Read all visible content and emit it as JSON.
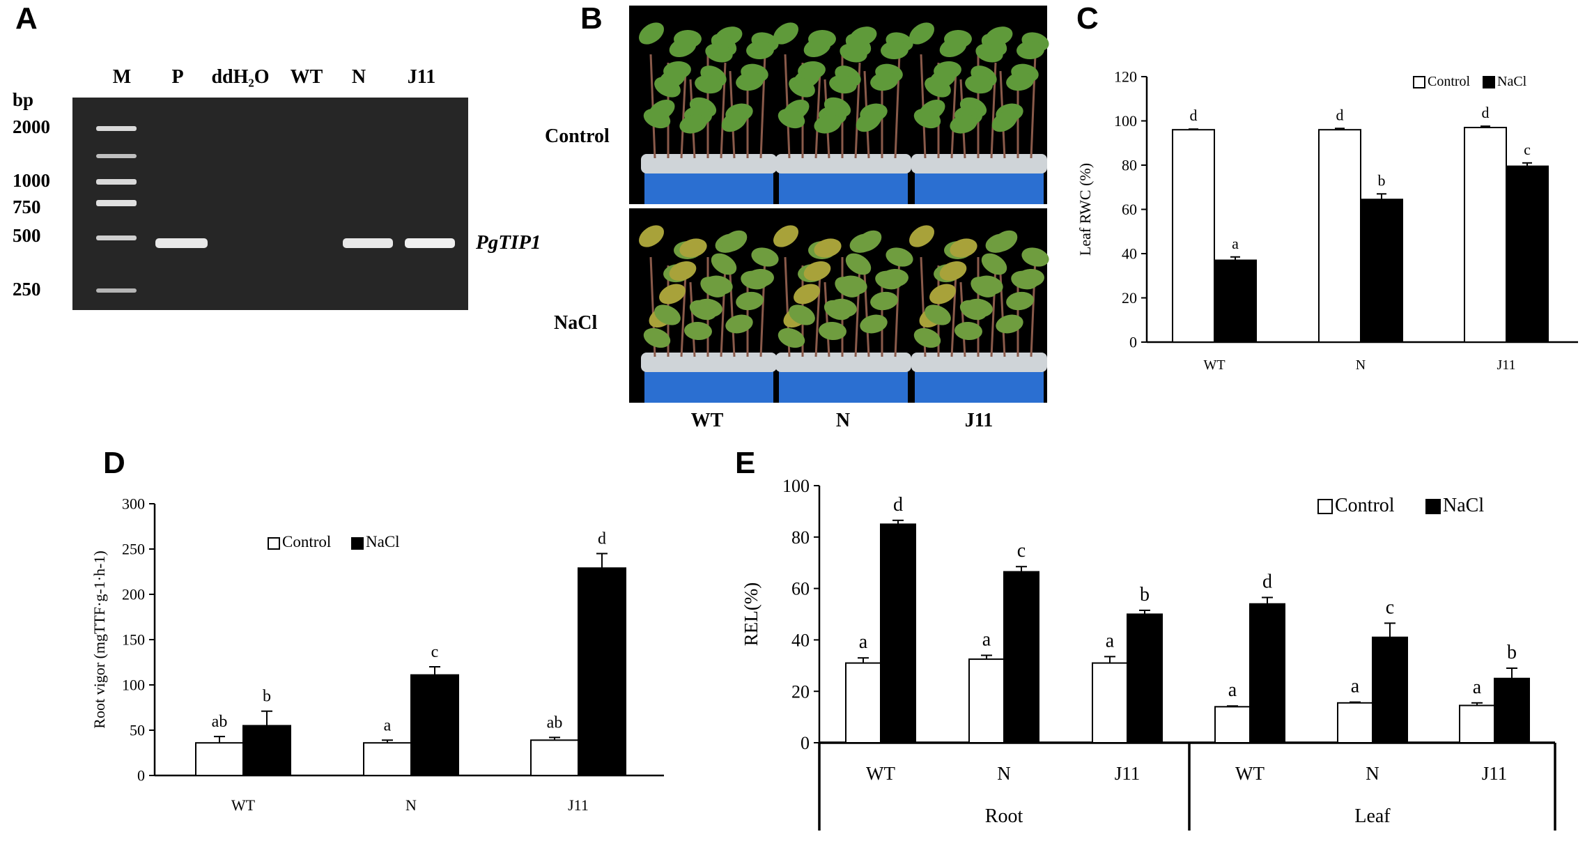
{
  "figure": {
    "panels": {
      "A": {
        "letter": "A",
        "lane_labels": [
          "M",
          "P",
          "ddH₂O",
          "WT",
          "N",
          "J11"
        ],
        "marker_unit": "bp",
        "marker_sizes": [
          "2000",
          "1000",
          "750",
          "500",
          "250"
        ],
        "band_label": "PgTIP1"
      },
      "B": {
        "letter": "B",
        "row_labels": [
          "Control",
          "NaCl"
        ],
        "column_labels": [
          "WT",
          "N",
          "J11"
        ]
      },
      "C": {
        "letter": "C"
      },
      "D": {
        "letter": "D"
      },
      "E": {
        "letter": "E"
      }
    }
  },
  "colors": {
    "gel_background": "#262626",
    "gel_band": "#e8e8e8",
    "control_fill": "#ffffff",
    "nacl_fill": "#000000",
    "photo_background": "#000000",
    "leaf_green": "#5f9a3a",
    "pot_blue": "#2b6fd1",
    "foam_gray": "#cfd4d8"
  },
  "chart_data": [
    {
      "panel": "C",
      "type": "bar",
      "categories": [
        "WT",
        "N",
        "J11"
      ],
      "series": [
        {
          "name": "Control",
          "values": [
            96,
            96,
            97
          ],
          "errors": [
            0.3,
            0.6,
            0.6
          ],
          "labels": [
            "d",
            "d",
            "d"
          ]
        },
        {
          "name": "NaCl",
          "values": [
            37,
            64.5,
            79.5
          ],
          "errors": [
            1.5,
            2.5,
            1.5
          ],
          "labels": [
            "a",
            "b",
            "c"
          ]
        }
      ],
      "ylabel": "Leaf RWC (%)",
      "ylim": [
        0,
        120
      ],
      "yticks": [
        "0",
        "20",
        "40",
        "60",
        "80",
        "100",
        "120"
      ],
      "legend": "top-right"
    },
    {
      "panel": "D",
      "type": "bar",
      "categories": [
        "WT",
        "N",
        "J11"
      ],
      "series": [
        {
          "name": "Control",
          "values": [
            36,
            36,
            39
          ],
          "errors": [
            7,
            3,
            3
          ],
          "labels": [
            "ab",
            "a",
            "ab"
          ]
        },
        {
          "name": "NaCl",
          "values": [
            55,
            111,
            229
          ],
          "errors": [
            16,
            9,
            16
          ],
          "labels": [
            "b",
            "c",
            "d"
          ]
        }
      ],
      "ylabel": "Root vigor (mgTTF·g-1·h-1)",
      "ylim": [
        0,
        300
      ],
      "yticks": [
        "0",
        "50",
        "100",
        "150",
        "200",
        "250",
        "300"
      ],
      "legend": "top-center"
    },
    {
      "panel": "E",
      "type": "bar",
      "categories": [
        "WT",
        "N",
        "J11",
        "WT",
        "N",
        "J11"
      ],
      "groups": [
        "Root",
        "Leaf"
      ],
      "series": [
        {
          "name": "Control",
          "values": [
            31,
            32.5,
            31,
            14,
            15.5,
            14.5
          ],
          "errors": [
            2,
            1.5,
            2.5,
            0.3,
            0.3,
            1
          ],
          "labels": [
            "a",
            "a",
            "a",
            "a",
            "a",
            "a"
          ]
        },
        {
          "name": "NaCl",
          "values": [
            85,
            66.5,
            50,
            54,
            41,
            25
          ],
          "errors": [
            1.5,
            2,
            1.5,
            2.5,
            5.5,
            4
          ],
          "labels": [
            "d",
            "c",
            "b",
            "d",
            "c",
            "b"
          ]
        }
      ],
      "ylabel": "REL(%)",
      "ylim": [
        0,
        100
      ],
      "yticks": [
        "0",
        "20",
        "40",
        "60",
        "80",
        "100"
      ],
      "legend": "top-right"
    }
  ]
}
